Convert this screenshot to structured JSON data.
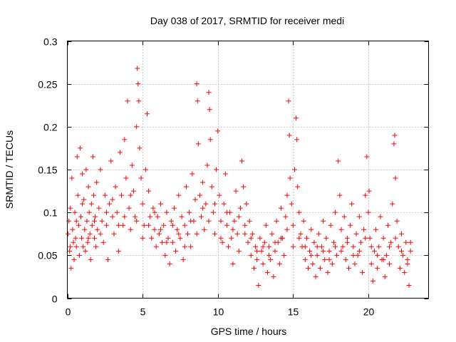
{
  "chart_data": {
    "type": "scatter",
    "title": "Day 038 of 2017, SRMTID for receiver medi",
    "xlabel": "GPS time / hours",
    "ylabel": "SRMTID / TECUs",
    "xlim": [
      0,
      24
    ],
    "ylim": [
      0,
      0.3
    ],
    "xticks": [
      0,
      5,
      10,
      15,
      20
    ],
    "xtick_labels": [
      "0",
      "5",
      "10",
      "15",
      "20"
    ],
    "yticks": [
      0,
      0.05,
      0.1,
      0.15,
      0.2,
      0.25,
      0.3
    ],
    "ytick_labels": [
      "0",
      "0.05",
      "0.1",
      "0.15",
      "0.2",
      "0.25",
      "0.3"
    ],
    "grid": true,
    "legend": "none",
    "marker": "+",
    "color": "#ff0000",
    "series": [
      {
        "name": "SRMTID",
        "points": [
          [
            0.05,
            0.075
          ],
          [
            0.1,
            0.09
          ],
          [
            0.15,
            0.055
          ],
          [
            0.2,
            0.105
          ],
          [
            0.25,
            0.035
          ],
          [
            0.3,
            0.14
          ],
          [
            0.35,
            0.08
          ],
          [
            0.4,
            0.065
          ],
          [
            0.45,
            0.045
          ],
          [
            0.5,
            0.1
          ],
          [
            0.55,
            0.07
          ],
          [
            0.6,
            0.06
          ],
          [
            0.65,
            0.165
          ],
          [
            0.7,
            0.12
          ],
          [
            0.75,
            0.085
          ],
          [
            0.8,
            0.05
          ],
          [
            0.85,
            0.175
          ],
          [
            0.9,
            0.095
          ],
          [
            0.95,
            0.07
          ],
          [
            1.0,
            0.145
          ],
          [
            1.05,
            0.06
          ],
          [
            1.1,
            0.115
          ],
          [
            1.15,
            0.08
          ],
          [
            1.2,
            0.055
          ],
          [
            1.25,
            0.15
          ],
          [
            1.3,
            0.09
          ],
          [
            1.35,
            0.065
          ],
          [
            1.4,
            0.13
          ],
          [
            1.45,
            0.1
          ],
          [
            1.5,
            0.075
          ],
          [
            1.55,
            0.045
          ],
          [
            1.6,
            0.11
          ],
          [
            1.65,
            0.085
          ],
          [
            1.7,
            0.165
          ],
          [
            1.75,
            0.12
          ],
          [
            1.8,
            0.07
          ],
          [
            1.85,
            0.095
          ],
          [
            1.9,
            0.06
          ],
          [
            1.95,
            0.135
          ],
          [
            2.0,
            0.08
          ],
          [
            2.1,
            0.105
          ],
          [
            2.2,
            0.15
          ],
          [
            2.3,
            0.09
          ],
          [
            2.4,
            0.065
          ],
          [
            2.5,
            0.12
          ],
          [
            2.6,
            0.085
          ],
          [
            2.7,
            0.045
          ],
          [
            2.8,
            0.11
          ],
          [
            2.9,
            0.16
          ],
          [
            3.0,
            0.095
          ],
          [
            3.1,
            0.075
          ],
          [
            3.2,
            0.13
          ],
          [
            3.3,
            0.1
          ],
          [
            3.4,
            0.055
          ],
          [
            3.5,
            0.17
          ],
          [
            3.6,
            0.12
          ],
          [
            3.7,
            0.085
          ],
          [
            3.8,
            0.185
          ],
          [
            3.9,
            0.14
          ],
          [
            4.0,
            0.23
          ],
          [
            4.1,
            0.105
          ],
          [
            4.2,
            0.08
          ],
          [
            4.3,
            0.155
          ],
          [
            4.4,
            0.125
          ],
          [
            4.5,
            0.095
          ],
          [
            4.6,
            0.2
          ],
          [
            4.65,
            0.268
          ],
          [
            4.7,
            0.25
          ],
          [
            4.75,
            0.23
          ],
          [
            4.8,
            0.175
          ],
          [
            4.9,
            0.14
          ],
          [
            5.0,
            0.11
          ],
          [
            5.1,
            0.085
          ],
          [
            5.2,
            0.15
          ],
          [
            5.3,
            0.215
          ],
          [
            5.4,
            0.125
          ],
          [
            5.5,
            0.095
          ],
          [
            5.6,
            0.07
          ],
          [
            5.7,
            0.105
          ],
          [
            5.8,
            0.08
          ],
          [
            5.9,
            0.06
          ],
          [
            6.0,
            0.095
          ],
          [
            6.1,
            0.075
          ],
          [
            6.2,
            0.11
          ],
          [
            6.3,
            0.065
          ],
          [
            6.4,
            0.085
          ],
          [
            6.5,
            0.05
          ],
          [
            6.6,
            0.1
          ],
          [
            6.7,
            0.07
          ],
          [
            6.8,
            0.04
          ],
          [
            6.9,
            0.09
          ],
          [
            7.0,
            0.065
          ],
          [
            7.1,
            0.105
          ],
          [
            7.2,
            0.055
          ],
          [
            7.3,
            0.08
          ],
          [
            7.4,
            0.12
          ],
          [
            7.5,
            0.07
          ],
          [
            7.6,
            0.095
          ],
          [
            7.7,
            0.045
          ],
          [
            7.8,
            0.085
          ],
          [
            7.9,
            0.13
          ],
          [
            8.0,
            0.075
          ],
          [
            8.1,
            0.1
          ],
          [
            8.2,
            0.06
          ],
          [
            8.3,
            0.145
          ],
          [
            8.4,
            0.09
          ],
          [
            8.5,
            0.115
          ],
          [
            8.6,
            0.25
          ],
          [
            8.65,
            0.23
          ],
          [
            8.7,
            0.18
          ],
          [
            8.8,
            0.12
          ],
          [
            8.9,
            0.095
          ],
          [
            9.0,
            0.135
          ],
          [
            9.1,
            0.08
          ],
          [
            9.2,
            0.11
          ],
          [
            9.3,
            0.155
          ],
          [
            9.4,
            0.24
          ],
          [
            9.45,
            0.22
          ],
          [
            9.5,
            0.185
          ],
          [
            9.6,
            0.13
          ],
          [
            9.7,
            0.1
          ],
          [
            9.8,
            0.075
          ],
          [
            9.9,
            0.15
          ],
          [
            10.0,
            0.195
          ],
          [
            10.1,
            0.12
          ],
          [
            10.2,
            0.09
          ],
          [
            10.3,
            0.065
          ],
          [
            10.4,
            0.11
          ],
          [
            10.5,
            0.145
          ],
          [
            10.6,
            0.085
          ],
          [
            10.7,
            0.06
          ],
          [
            10.8,
            0.1
          ],
          [
            10.9,
            0.07
          ],
          [
            11.0,
            0.04
          ],
          [
            11.1,
            0.09
          ],
          [
            11.2,
            0.125
          ],
          [
            11.3,
            0.075
          ],
          [
            11.4,
            0.055
          ],
          [
            11.5,
            0.105
          ],
          [
            11.6,
            0.16
          ],
          [
            11.7,
            0.13
          ],
          [
            11.8,
            0.085
          ],
          [
            11.9,
            0.11
          ],
          [
            12.0,
            0.065
          ],
          [
            12.1,
            0.09
          ],
          [
            12.2,
            0.05
          ],
          [
            12.3,
            0.075
          ],
          [
            12.4,
            0.035
          ],
          [
            12.5,
            0.06
          ],
          [
            12.6,
            0.045
          ],
          [
            12.7,
            0.015
          ],
          [
            12.8,
            0.07
          ],
          [
            12.9,
            0.055
          ],
          [
            13.0,
            0.04
          ],
          [
            13.1,
            0.065
          ],
          [
            13.2,
            0.085
          ],
          [
            13.3,
            0.03
          ],
          [
            13.4,
            0.06
          ],
          [
            13.5,
            0.045
          ],
          [
            13.6,
            0.075
          ],
          [
            13.7,
            0.025
          ],
          [
            13.8,
            0.055
          ],
          [
            13.9,
            0.09
          ],
          [
            14.0,
            0.065
          ],
          [
            14.1,
            0.04
          ],
          [
            14.2,
            0.105
          ],
          [
            14.3,
            0.07
          ],
          [
            14.4,
            0.05
          ],
          [
            14.5,
            0.095
          ],
          [
            14.6,
            0.12
          ],
          [
            14.7,
            0.23
          ],
          [
            14.75,
            0.19
          ],
          [
            14.8,
            0.14
          ],
          [
            14.9,
            0.11
          ],
          [
            15.0,
            0.085
          ],
          [
            15.1,
            0.15
          ],
          [
            15.2,
            0.21
          ],
          [
            15.25,
            0.185
          ],
          [
            15.3,
            0.13
          ],
          [
            15.4,
            0.1
          ],
          [
            15.5,
            0.075
          ],
          [
            15.6,
            0.06
          ],
          [
            15.7,
            0.09
          ],
          [
            15.8,
            0.045
          ],
          [
            15.9,
            0.07
          ],
          [
            16.0,
            0.035
          ],
          [
            16.1,
            0.055
          ],
          [
            16.2,
            0.08
          ],
          [
            16.3,
            0.04
          ],
          [
            16.4,
            0.065
          ],
          [
            16.5,
            0.025
          ],
          [
            16.6,
            0.05
          ],
          [
            16.7,
            0.075
          ],
          [
            16.8,
            0.035
          ],
          [
            16.9,
            0.06
          ],
          [
            17.0,
            0.09
          ],
          [
            17.1,
            0.045
          ],
          [
            17.2,
            0.07
          ],
          [
            17.3,
            0.03
          ],
          [
            17.4,
            0.055
          ],
          [
            17.5,
            0.085
          ],
          [
            17.6,
            0.04
          ],
          [
            17.7,
            0.065
          ],
          [
            17.8,
            0.1
          ],
          [
            17.9,
            0.05
          ],
          [
            18.0,
            0.16
          ],
          [
            18.1,
            0.12
          ],
          [
            18.2,
            0.08
          ],
          [
            18.3,
            0.06
          ],
          [
            18.4,
            0.095
          ],
          [
            18.5,
            0.045
          ],
          [
            18.6,
            0.07
          ],
          [
            18.7,
            0.035
          ],
          [
            18.8,
            0.085
          ],
          [
            18.9,
            0.11
          ],
          [
            19.0,
            0.06
          ],
          [
            19.1,
            0.04
          ],
          [
            19.2,
            0.075
          ],
          [
            19.3,
            0.05
          ],
          [
            19.4,
            0.095
          ],
          [
            19.5,
            0.065
          ],
          [
            19.6,
            0.03
          ],
          [
            19.7,
            0.08
          ],
          [
            19.8,
            0.12
          ],
          [
            19.9,
            0.165
          ],
          [
            20.0,
            0.1
          ],
          [
            20.05,
            0.125
          ],
          [
            20.1,
            0.07
          ],
          [
            20.2,
            0.04
          ],
          [
            20.3,
            0.02
          ],
          [
            20.4,
            0.055
          ],
          [
            20.5,
            0.08
          ],
          [
            20.6,
            0.035
          ],
          [
            20.7,
            0.06
          ],
          [
            20.8,
            0.095
          ],
          [
            20.9,
            0.045
          ],
          [
            21.0,
            0.07
          ],
          [
            21.1,
            0.025
          ],
          [
            21.2,
            0.05
          ],
          [
            21.3,
            0.085
          ],
          [
            21.4,
            0.04
          ],
          [
            21.5,
            0.065
          ],
          [
            21.6,
            0.11
          ],
          [
            21.7,
            0.18
          ],
          [
            21.75,
            0.19
          ],
          [
            21.8,
            0.14
          ],
          [
            21.9,
            0.09
          ],
          [
            22.0,
            0.06
          ],
          [
            22.1,
            0.035
          ],
          [
            22.2,
            0.075
          ],
          [
            22.3,
            0.05
          ],
          [
            22.4,
            0.03
          ],
          [
            22.5,
            0.065
          ],
          [
            22.6,
            0.045
          ],
          [
            22.7,
            0.015
          ],
          [
            22.8,
            0.055
          ],
          [
            0.2,
            0.06
          ],
          [
            0.6,
            0.09
          ],
          [
            1.0,
            0.11
          ],
          [
            1.4,
            0.07
          ],
          [
            1.8,
            0.09
          ],
          [
            2.2,
            0.075
          ],
          [
            2.6,
            0.1
          ],
          [
            3.0,
            0.115
          ],
          [
            3.4,
            0.085
          ],
          [
            3.8,
            0.095
          ],
          [
            4.2,
            0.12
          ],
          [
            4.6,
            0.09
          ],
          [
            5.0,
            0.07
          ],
          [
            5.4,
            0.085
          ],
          [
            5.8,
            0.1
          ],
          [
            6.2,
            0.08
          ],
          [
            6.6,
            0.065
          ],
          [
            7.0,
            0.085
          ],
          [
            7.4,
            0.075
          ],
          [
            7.8,
            0.06
          ],
          [
            8.2,
            0.09
          ],
          [
            8.6,
            0.075
          ],
          [
            9.0,
            0.105
          ],
          [
            9.4,
            0.09
          ],
          [
            9.8,
            0.11
          ],
          [
            10.2,
            0.07
          ],
          [
            10.6,
            0.1
          ],
          [
            11.0,
            0.08
          ],
          [
            11.4,
            0.095
          ],
          [
            11.8,
            0.075
          ],
          [
            12.2,
            0.07
          ],
          [
            12.6,
            0.055
          ],
          [
            13.0,
            0.06
          ],
          [
            13.4,
            0.05
          ],
          [
            13.8,
            0.065
          ],
          [
            14.2,
            0.07
          ],
          [
            14.6,
            0.08
          ],
          [
            15.0,
            0.06
          ],
          [
            15.4,
            0.07
          ],
          [
            15.8,
            0.06
          ],
          [
            16.2,
            0.05
          ],
          [
            16.6,
            0.06
          ],
          [
            17.0,
            0.055
          ],
          [
            17.4,
            0.045
          ],
          [
            17.8,
            0.06
          ],
          [
            18.2,
            0.055
          ],
          [
            18.6,
            0.065
          ],
          [
            19.0,
            0.05
          ],
          [
            19.4,
            0.055
          ],
          [
            19.8,
            0.07
          ],
          [
            20.2,
            0.06
          ],
          [
            20.6,
            0.05
          ],
          [
            21.0,
            0.045
          ],
          [
            21.4,
            0.06
          ],
          [
            21.8,
            0.07
          ],
          [
            22.2,
            0.055
          ],
          [
            22.6,
            0.04
          ],
          [
            22.8,
            0.065
          ]
        ]
      }
    ]
  }
}
